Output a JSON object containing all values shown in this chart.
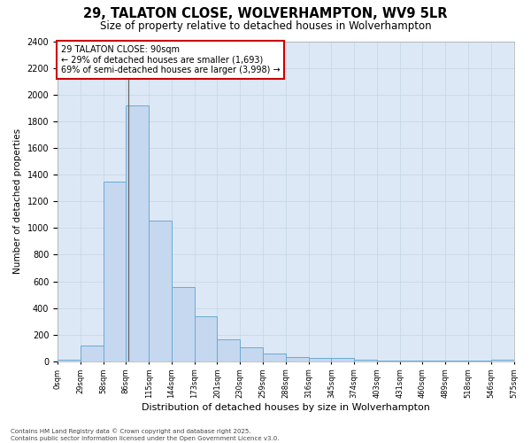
{
  "title1": "29, TALATON CLOSE, WOLVERHAMPTON, WV9 5LR",
  "title2": "Size of property relative to detached houses in Wolverhampton",
  "xlabel": "Distribution of detached houses by size in Wolverhampton",
  "ylabel": "Number of detached properties",
  "bar_values": [
    10,
    120,
    1350,
    1920,
    1055,
    560,
    335,
    165,
    105,
    60,
    35,
    25,
    25,
    15,
    5,
    5,
    5,
    5,
    5,
    10
  ],
  "categories": [
    "0sqm",
    "29sqm",
    "58sqm",
    "86sqm",
    "115sqm",
    "144sqm",
    "173sqm",
    "201sqm",
    "230sqm",
    "259sqm",
    "288sqm",
    "316sqm",
    "345sqm",
    "374sqm",
    "403sqm",
    "431sqm",
    "460sqm",
    "489sqm",
    "518sqm",
    "546sqm",
    "575sqm"
  ],
  "bar_color": "#c5d8f0",
  "bar_edge_color": "#6aaad4",
  "annotation_text": "29 TALATON CLOSE: 90sqm\n← 29% of detached houses are smaller (1,693)\n69% of semi-detached houses are larger (3,998) →",
  "annotation_box_color": "#ffffff",
  "annotation_box_edge": "#cc0000",
  "vline_color": "#666666",
  "ylim": [
    0,
    2400
  ],
  "yticks": [
    0,
    200,
    400,
    600,
    800,
    1000,
    1200,
    1400,
    1600,
    1800,
    2000,
    2200,
    2400
  ],
  "grid_color": "#c8d8e8",
  "bg_color": "#dce8f5",
  "fig_bg_color": "#ffffff",
  "footer": "Contains HM Land Registry data © Crown copyright and database right 2025.\nContains public sector information licensed under the Open Government Licence v3.0.",
  "bin_width": 29,
  "vline_x": 90
}
